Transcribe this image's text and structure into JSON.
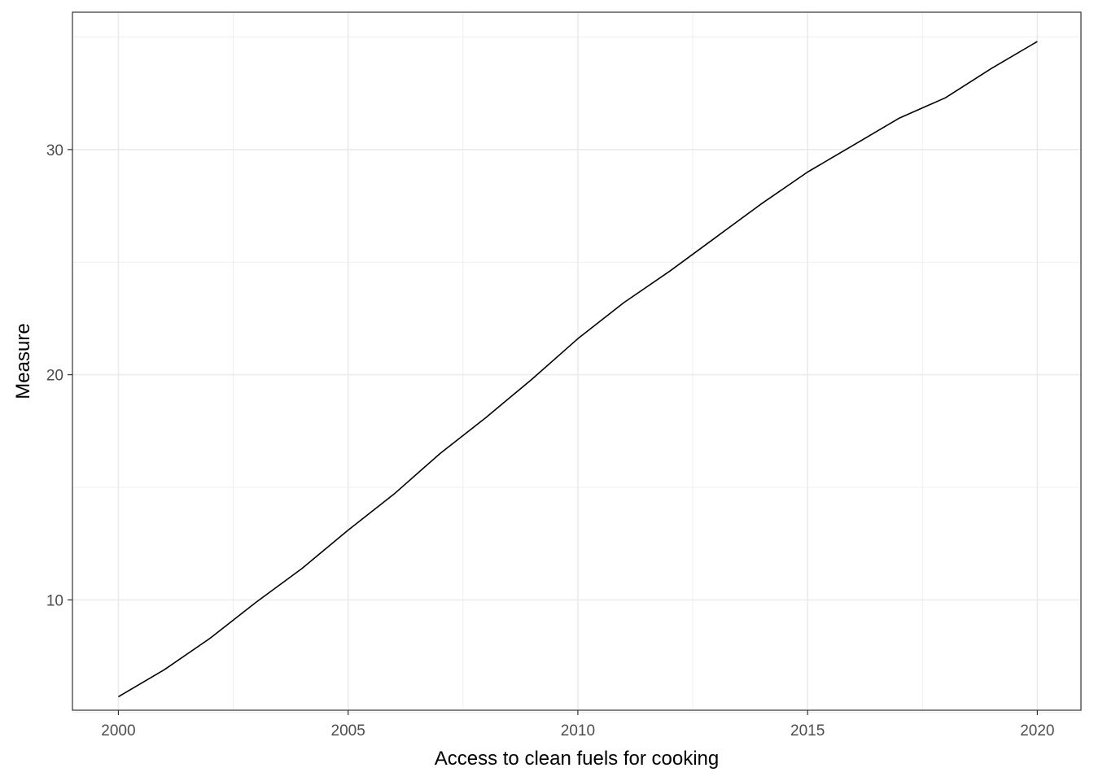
{
  "chart_data": {
    "type": "line",
    "title": "",
    "xlabel": "Access to clean fuels for cooking",
    "ylabel": "Measure",
    "xlim": [
      1999,
      2020.95
    ],
    "ylim": [
      5.1,
      36.1
    ],
    "x_major_ticks": [
      2000,
      2005,
      2010,
      2015,
      2020
    ],
    "x_minor_ticks": [
      2002.5,
      2007.5,
      2012.5,
      2017.5
    ],
    "y_major_ticks": [
      10,
      20,
      30
    ],
    "y_minor_ticks": [
      5,
      15,
      25,
      35
    ],
    "x_tick_labels": [
      "2000",
      "2005",
      "2010",
      "2015",
      "2020"
    ],
    "y_tick_labels": [
      "10",
      "20",
      "30"
    ],
    "grid": true,
    "line_color": "#000000",
    "grid_color": "#ebebeb",
    "series": [
      {
        "x": [
          2000,
          2001,
          2002,
          2003,
          2004,
          2005,
          2006,
          2007,
          2008,
          2009,
          2010,
          2011,
          2012,
          2013,
          2014,
          2015,
          2016,
          2017,
          2018,
          2019,
          2020
        ],
        "values": [
          5.7,
          6.9,
          8.3,
          9.9,
          11.4,
          13.1,
          14.7,
          16.5,
          18.1,
          19.8,
          21.6,
          23.2,
          24.6,
          26.1,
          27.6,
          29.0,
          30.2,
          31.4,
          32.3,
          33.6,
          34.8
        ]
      }
    ]
  }
}
